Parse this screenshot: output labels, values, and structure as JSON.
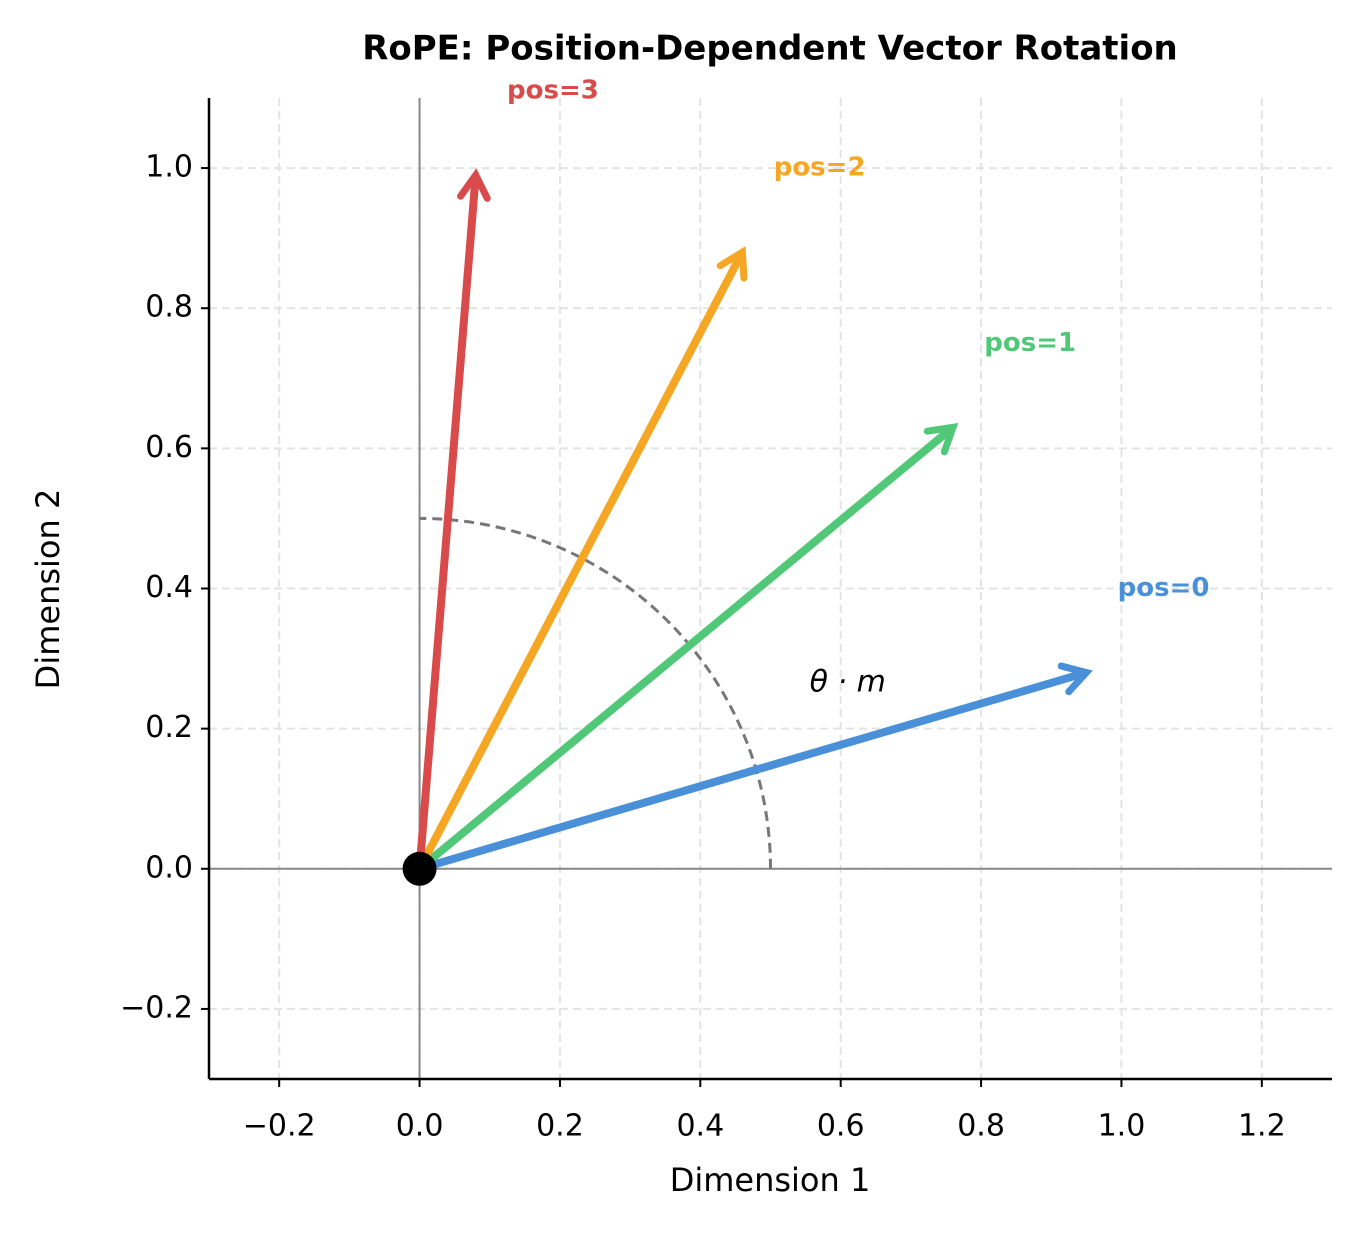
{
  "chart_data": {
    "type": "vector",
    "title": "RoPE: Position-Dependent Vector Rotation",
    "xlabel": "Dimension 1",
    "ylabel": "Dimension 2",
    "annotation": "θ · m",
    "arc_radius": 0.5,
    "series": [
      {
        "name": "pos=0",
        "color": "#4a90d9",
        "x": 0.95,
        "y": 0.28
      },
      {
        "name": "pos=1",
        "color": "#50c878",
        "x": 0.76,
        "y": 0.63
      },
      {
        "name": "pos=2",
        "color": "#f5a623",
        "x": 0.46,
        "y": 0.88
      },
      {
        "name": "pos=3",
        "color": "#d94a4a",
        "x": 0.08,
        "y": 0.99
      }
    ],
    "xlim": [
      -0.3,
      1.3
    ],
    "ylim": [
      -0.3,
      1.1
    ],
    "xticks": [
      {
        "value": -0.2,
        "label": "−0.2"
      },
      {
        "value": 0,
        "label": "0.0"
      },
      {
        "value": 0.2,
        "label": "0.2"
      },
      {
        "value": 0.4,
        "label": "0.4"
      },
      {
        "value": 0.6,
        "label": "0.6"
      },
      {
        "value": 0.8,
        "label": "0.8"
      },
      {
        "value": 1,
        "label": "1.0"
      },
      {
        "value": 1.2,
        "label": "1.2"
      }
    ],
    "yticks": [
      {
        "value": -0.2,
        "label": "−0.2"
      },
      {
        "value": 0,
        "label": "0.0"
      },
      {
        "value": 0.2,
        "label": "0.2"
      },
      {
        "value": 0.4,
        "label": "0.4"
      },
      {
        "value": 0.6,
        "label": "0.6"
      },
      {
        "value": 0.8,
        "label": "0.8"
      },
      {
        "value": 1,
        "label": "1.0"
      }
    ],
    "grid": true
  }
}
